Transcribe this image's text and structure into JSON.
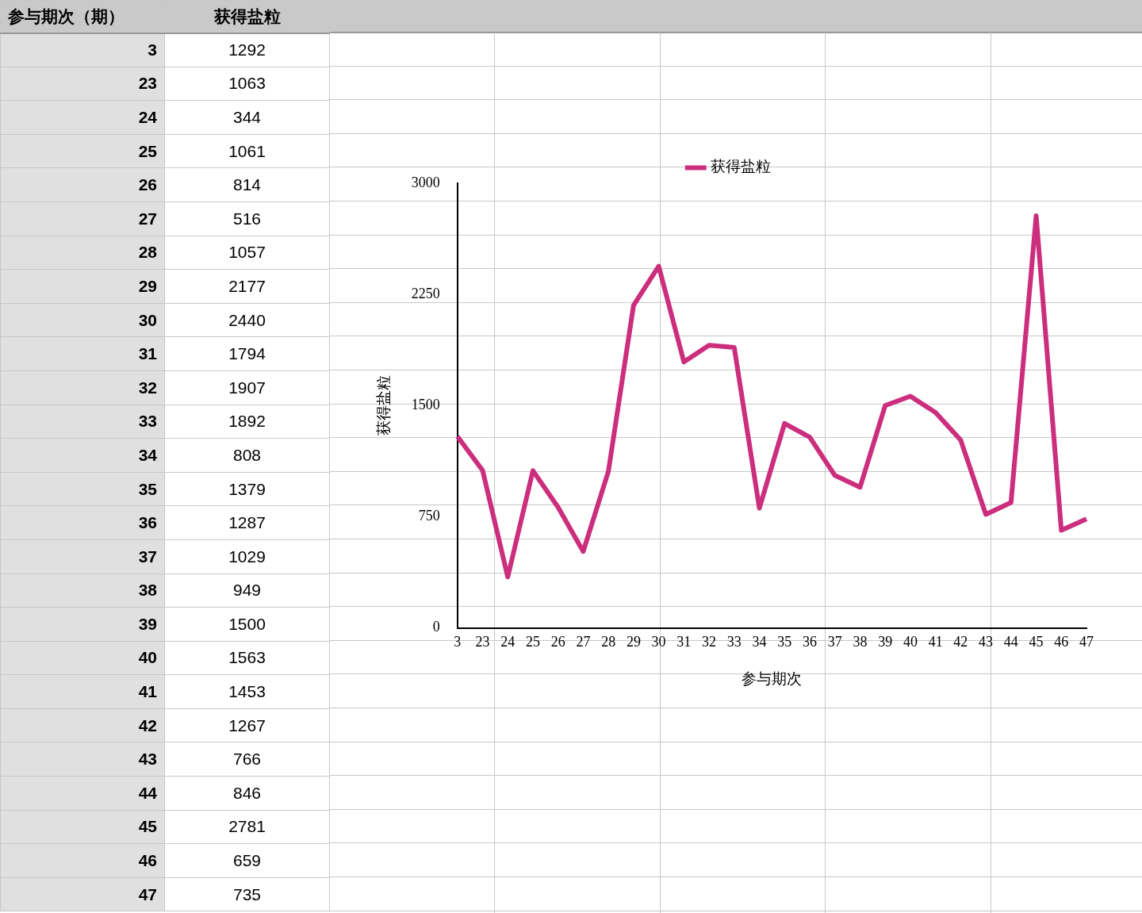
{
  "chart_data": [
    {
      "type": "heatmap",
      "ylabel": "参与期次（期）",
      "data_labels": true,
      "categories": [
        "获得盐粒"
      ],
      "y_categories": [
        "3",
        "23",
        "24",
        "25",
        "26",
        "27",
        "28",
        "29",
        "30",
        "31",
        "32",
        "33",
        "34",
        "35",
        "36",
        "37",
        "38",
        "39",
        "40",
        "41",
        "42",
        "43",
        "44",
        "45",
        "46",
        "47"
      ],
      "cells": [
        [
          1292
        ],
        [
          1063
        ],
        [
          344
        ],
        [
          1061
        ],
        [
          814
        ],
        [
          516
        ],
        [
          1057
        ],
        [
          2177
        ],
        [
          2440
        ],
        [
          1794
        ],
        [
          1907
        ],
        [
          1892
        ],
        [
          808
        ],
        [
          1379
        ],
        [
          1287
        ],
        [
          1029
        ],
        [
          949
        ],
        [
          1500
        ],
        [
          1563
        ],
        [
          1453
        ],
        [
          1267
        ],
        [
          766
        ],
        [
          846
        ],
        [
          2781
        ],
        [
          659
        ],
        [
          735
        ]
      ]
    },
    {
      "type": "line",
      "xlabel": "参与期次",
      "ylabel": "获得盐粒",
      "categories": [
        "3",
        "23",
        "24",
        "25",
        "26",
        "27",
        "28",
        "29",
        "30",
        "31",
        "32",
        "33",
        "34",
        "35",
        "36",
        "37",
        "38",
        "39",
        "40",
        "41",
        "42",
        "43",
        "44",
        "45",
        "46",
        "47"
      ],
      "series": [
        {
          "name": "获得盐粒",
          "color": "#cc2e7e",
          "values": [
            1292,
            1063,
            344,
            1061,
            814,
            516,
            1057,
            2177,
            2440,
            1794,
            1907,
            1892,
            808,
            1379,
            1287,
            1029,
            949,
            1500,
            1563,
            1453,
            1267,
            766,
            846,
            2781,
            659,
            735
          ]
        }
      ],
      "ylim": [
        0,
        3000
      ],
      "yticks": [
        0,
        750,
        1500,
        2250,
        3000
      ],
      "grid": false,
      "legend": "top",
      "marker": "none",
      "line_style": "solid"
    }
  ]
}
